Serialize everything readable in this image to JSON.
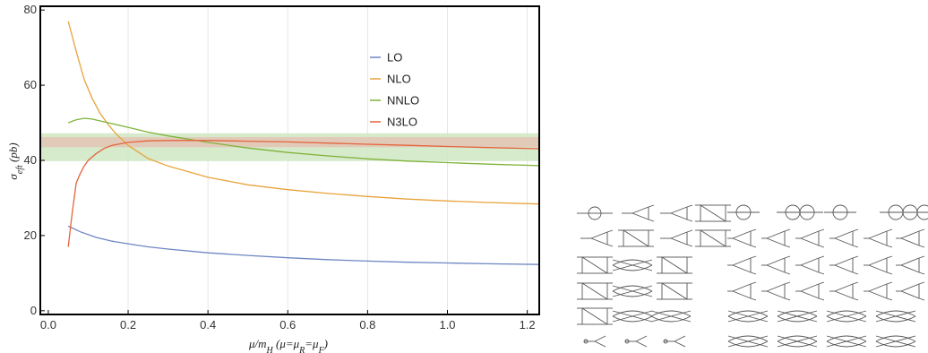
{
  "chart_data": {
    "type": "line",
    "xlabel": "μ/m_H (μ=μ_R=μ_F)",
    "ylabel": "σ_eft (pb)",
    "xlim": [
      -0.02,
      1.23
    ],
    "ylim": [
      -1,
      81
    ],
    "xticks": [
      "0.0",
      "0.2",
      "0.4",
      "0.6",
      "0.8",
      "1.0",
      "1.2"
    ],
    "yticks": [
      "0",
      "20",
      "40",
      "60",
      "80"
    ],
    "grid": "vertical",
    "legend_position": "top-center",
    "bands": [
      {
        "low": 39.8,
        "high": 47.2,
        "color": "#cfe6c3"
      },
      {
        "low": 43.5,
        "high": 46.2,
        "color": "#e3c6b4"
      }
    ],
    "series": [
      {
        "name": "LO",
        "color": "#6e86c4",
        "x": [
          0.05,
          0.08,
          0.12,
          0.16,
          0.2,
          0.25,
          0.3,
          0.4,
          0.5,
          0.6,
          0.7,
          0.8,
          0.9,
          1.0,
          1.1,
          1.23
        ],
        "y": [
          22.5,
          21.0,
          19.5,
          18.5,
          17.8,
          17.0,
          16.4,
          15.4,
          14.7,
          14.1,
          13.6,
          13.2,
          12.9,
          12.7,
          12.5,
          12.3
        ]
      },
      {
        "name": "NLO",
        "color": "#e8a33d",
        "x": [
          0.05,
          0.07,
          0.09,
          0.11,
          0.13,
          0.15,
          0.17,
          0.2,
          0.25,
          0.3,
          0.4,
          0.5,
          0.6,
          0.7,
          0.8,
          0.9,
          1.0,
          1.1,
          1.23
        ],
        "y": [
          77,
          69,
          61.5,
          56.5,
          52.5,
          49.5,
          47,
          44,
          40.5,
          38.5,
          35.5,
          33.5,
          32.2,
          31.2,
          30.4,
          29.7,
          29.2,
          28.8,
          28.4
        ]
      },
      {
        "name": "NNLO",
        "color": "#7fb33a",
        "x": [
          0.05,
          0.07,
          0.09,
          0.11,
          0.13,
          0.15,
          0.2,
          0.25,
          0.3,
          0.4,
          0.5,
          0.6,
          0.7,
          0.8,
          0.9,
          1.0,
          1.1,
          1.23
        ],
        "y": [
          50,
          50.8,
          51.2,
          51.0,
          50.5,
          50.0,
          48.8,
          47.5,
          46.5,
          44.8,
          43.3,
          42.1,
          41.2,
          40.4,
          39.8,
          39.4,
          39.0,
          38.6
        ]
      },
      {
        "name": "N3LO",
        "color": "#e5633c",
        "x": [
          0.05,
          0.06,
          0.07,
          0.08,
          0.09,
          0.1,
          0.12,
          0.14,
          0.16,
          0.2,
          0.25,
          0.3,
          0.4,
          0.5,
          0.6,
          0.7,
          0.8,
          0.9,
          1.0,
          1.1,
          1.23
        ],
        "y": [
          17,
          26,
          34,
          36.5,
          38.5,
          40,
          41.8,
          43.2,
          44.0,
          44.8,
          45.2,
          45.3,
          45.3,
          45.1,
          44.9,
          44.6,
          44.3,
          44.0,
          43.7,
          43.4,
          43.1
        ]
      }
    ]
  }
}
